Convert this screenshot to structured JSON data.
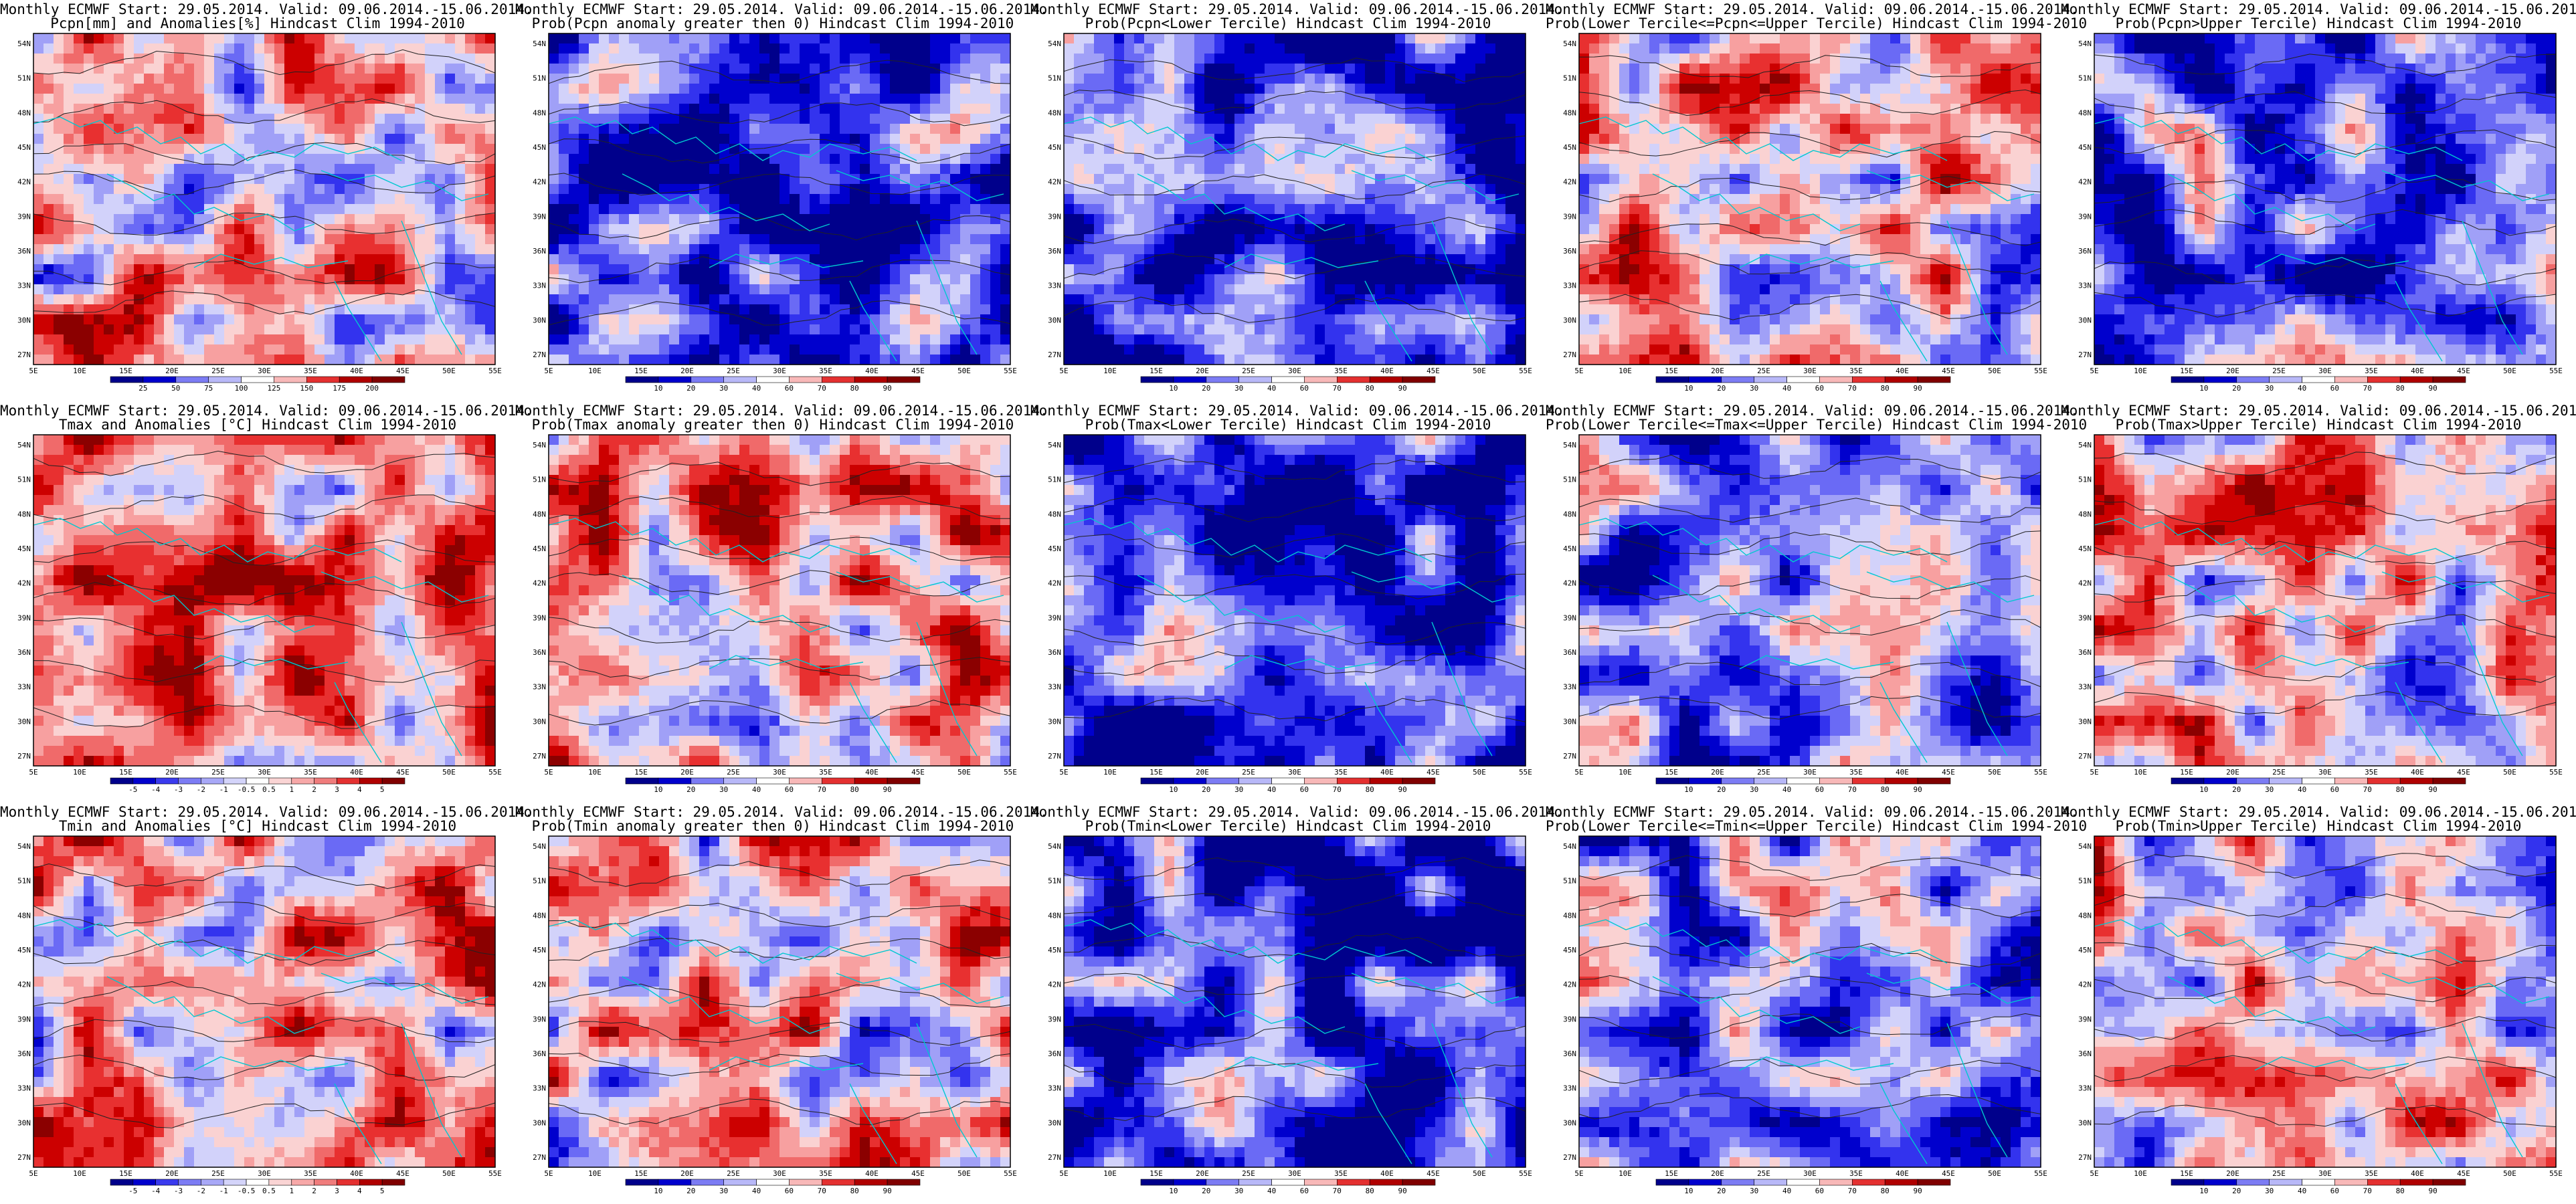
{
  "header": "Monthly ECMWF Start: 29.05.2014. Valid: 09.06.2014.-15.06.2014.",
  "lat_labels": [
    "54N",
    "51N",
    "48N",
    "45N",
    "42N",
    "39N",
    "36N",
    "33N",
    "30N",
    "27N"
  ],
  "lon_labels": [
    "5E",
    "10E",
    "15E",
    "20E",
    "25E",
    "30E",
    "35E",
    "40E",
    "45E",
    "50E",
    "55E"
  ],
  "panels": [
    {
      "subtitle": "Pcpn[mm] and Anomalies[%] Hindcast Clim 1994-2010",
      "cbar": [
        "25",
        "50",
        "75",
        "100",
        "125",
        "150",
        "175",
        "200"
      ],
      "scheme": "anom_pcpn",
      "tone": 0.55
    },
    {
      "subtitle": "Prob(Pcpn anomaly greater then 0) Hindcast Clim 1994-2010",
      "cbar": [
        "10",
        "20",
        "30",
        "40",
        "60",
        "70",
        "80",
        "90"
      ],
      "scheme": "prob",
      "tone": 0.25
    },
    {
      "subtitle": "Prob(Pcpn<Lower Tercile) Hindcast Clim 1994-2010",
      "cbar": [
        "10",
        "20",
        "30",
        "40",
        "60",
        "70",
        "80",
        "90"
      ],
      "scheme": "prob",
      "tone": 0.18
    },
    {
      "subtitle": "Prob(Lower Tercile<=Pcpn<=Upper Tercile) Hindcast Clim 1994-2010",
      "cbar": [
        "10",
        "20",
        "30",
        "40",
        "60",
        "70",
        "80",
        "90"
      ],
      "scheme": "prob",
      "tone": 0.6
    },
    {
      "subtitle": "Prob(Pcpn>Upper Tercile) Hindcast Clim 1994-2010",
      "cbar": [
        "10",
        "20",
        "30",
        "40",
        "60",
        "70",
        "80",
        "90"
      ],
      "scheme": "prob",
      "tone": 0.3
    },
    {
      "subtitle": "Tmax and Anomalies [°C] Hindcast Clim 1994-2010",
      "cbar": [
        "-5",
        "-4",
        "-3",
        "-2",
        "-1",
        "-0.5",
        "0.5",
        "1",
        "2",
        "3",
        "4",
        "5"
      ],
      "scheme": "anom_t",
      "tone": 0.68
    },
    {
      "subtitle": "Prob(Tmax anomaly greater then 0) Hindcast Clim 1994-2010",
      "cbar": [
        "10",
        "20",
        "30",
        "40",
        "60",
        "70",
        "80",
        "90"
      ],
      "scheme": "prob",
      "tone": 0.62
    },
    {
      "subtitle": "Prob(Tmax<Lower Tercile) Hindcast Clim 1994-2010",
      "cbar": [
        "10",
        "20",
        "30",
        "40",
        "60",
        "70",
        "80",
        "90"
      ],
      "scheme": "prob",
      "tone": 0.2
    },
    {
      "subtitle": "Prob(Lower Tercile<=Tmax<=Upper Tercile) Hindcast Clim 1994-2010",
      "cbar": [
        "10",
        "20",
        "30",
        "40",
        "60",
        "70",
        "80",
        "90"
      ],
      "scheme": "prob",
      "tone": 0.35
    },
    {
      "subtitle": "Prob(Tmax>Upper Tercile) Hindcast Clim 1994-2010",
      "cbar": [
        "10",
        "20",
        "30",
        "40",
        "60",
        "70",
        "80",
        "90"
      ],
      "scheme": "prob",
      "tone": 0.58
    },
    {
      "subtitle": "Tmin and Anomalies [°C] Hindcast Clim 1994-2010",
      "cbar": [
        "-5",
        "-4",
        "-3",
        "-2",
        "-1",
        "-0.5",
        "0.5",
        "1",
        "2",
        "3",
        "4",
        "5"
      ],
      "scheme": "anom_t",
      "tone": 0.62
    },
    {
      "subtitle": "Prob(Tmin anomaly greater then 0) Hindcast Clim 1994-2010",
      "cbar": [
        "10",
        "20",
        "30",
        "40",
        "60",
        "70",
        "80",
        "90"
      ],
      "scheme": "prob",
      "tone": 0.55
    },
    {
      "subtitle": "Prob(Tmin<Lower Tercile) Hindcast Clim 1994-2010",
      "cbar": [
        "10",
        "20",
        "30",
        "40",
        "60",
        "70",
        "80",
        "90"
      ],
      "scheme": "prob",
      "tone": 0.2
    },
    {
      "subtitle": "Prob(Lower Tercile<=Tmin<=Upper Tercile) Hindcast Clim 1994-2010",
      "cbar": [
        "10",
        "20",
        "30",
        "40",
        "60",
        "70",
        "80",
        "90"
      ],
      "scheme": "prob",
      "tone": 0.35
    },
    {
      "subtitle": "Prob(Tmin>Upper Tercile) Hindcast Clim 1994-2010",
      "cbar": [
        "10",
        "20",
        "30",
        "40",
        "60",
        "70",
        "80",
        "90"
      ],
      "scheme": "prob",
      "tone": 0.52
    }
  ]
}
